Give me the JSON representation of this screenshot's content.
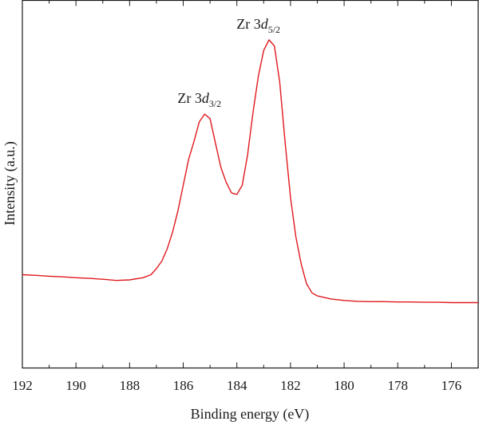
{
  "chart_data": {
    "type": "line",
    "xlabel": "Binding energy (eV)",
    "ylabel": "Intensity (a.u.)",
    "xlim": [
      192,
      175
    ],
    "ylim": [
      0,
      100
    ],
    "x_reversed": true,
    "x_ticks": [
      192,
      190,
      188,
      186,
      184,
      182,
      180,
      178,
      176
    ],
    "x_tick_labels": [
      "192",
      "190",
      "188",
      "186",
      "184",
      "182",
      "180",
      "178",
      "176"
    ],
    "y_ticks_shown": false,
    "grid": false,
    "line_color": "#e0191e",
    "series": [
      {
        "x": [
          192.0,
          191.5,
          191.0,
          190.5,
          190.0,
          189.5,
          189.0,
          188.5,
          188.0,
          187.5,
          187.2,
          187.0,
          186.8,
          186.6,
          186.4,
          186.2,
          186.0,
          185.8,
          185.6,
          185.4,
          185.2,
          185.0,
          184.8,
          184.6,
          184.4,
          184.2,
          184.0,
          183.8,
          183.6,
          183.4,
          183.2,
          183.0,
          182.8,
          182.6,
          182.4,
          182.2,
          182.0,
          181.8,
          181.6,
          181.4,
          181.2,
          181.0,
          180.5,
          180.0,
          179.5,
          179.0,
          178.5,
          178.0,
          177.5,
          177.0,
          176.5,
          176.0,
          175.5,
          175.0
        ],
        "y": [
          22.5,
          22.3,
          22.0,
          21.8,
          21.5,
          21.3,
          21.0,
          20.6,
          20.8,
          21.5,
          22.5,
          24.5,
          27.0,
          31.0,
          36.5,
          43.5,
          52.0,
          60.5,
          66.5,
          73.0,
          75.5,
          74.0,
          66.0,
          58.0,
          53.0,
          49.5,
          49.0,
          52.0,
          62.0,
          76.0,
          88.0,
          96.5,
          100.0,
          98.0,
          86.0,
          66.0,
          48.0,
          35.0,
          26.0,
          19.5,
          16.5,
          15.5,
          14.5,
          14.0,
          13.7,
          13.6,
          13.6,
          13.5,
          13.5,
          13.4,
          13.4,
          13.3,
          13.3,
          13.3
        ]
      }
    ],
    "annotations": [
      {
        "base": "Zr 3",
        "italic": "d",
        "sub": "3/2",
        "x": 185.1,
        "y": 75.5
      },
      {
        "base": "Zr 3",
        "italic": "d",
        "sub": "5/2",
        "x": 182.9,
        "y": 100.0
      }
    ]
  }
}
